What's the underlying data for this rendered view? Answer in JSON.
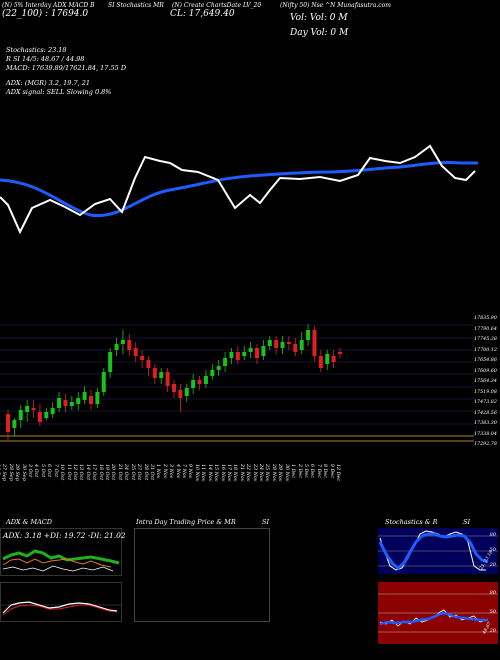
{
  "header": {
    "line1": [
      "(N) 5% Interday ADX MACD B",
      "SI Stochastics MR",
      "(N) Create ChartsDate LV_20",
      "(Nifty 50) Nse ^N Munafasutra.com"
    ],
    "line2": "(22_100) : 17694.0",
    "close_text": "CL: 17,649.40",
    "vol_text": "Vol: Vol: 0  M",
    "dayvol_text": "Day Vol: 0  M"
  },
  "info": {
    "stoch_label": "Stochastics: 23.18",
    "stoch_vals": "R       SI 14/5: 48.67 / 44.98",
    "macd": "MACD: 17639.89/17621.84, 17.55 D",
    "adx": "ADX:                      (MGR) 3.2,  19.7,  21",
    "adx_signal": "ADX  signal: SELL  Slowing 0.8%"
  },
  "price_labels": [
    "17835.90",
    "17790.64",
    "17745.38",
    "17700.12",
    "17654.86",
    "17609.60",
    "17564.34",
    "17519.08",
    "17473.82",
    "17428.56",
    "17383.30",
    "17338.04",
    "17292.78"
  ],
  "dates": [
    "26 Sep",
    "27 Sep",
    "28 Sep",
    "29 Sep",
    "30 Sep",
    "3 Oct",
    "4 Oct",
    "5 Oct",
    "6 Oct",
    "7 Oct",
    "10 Oct",
    "11 Oct",
    "12 Oct",
    "13 Oct",
    "14 Oct",
    "17 Oct",
    "18 Oct",
    "19 Oct",
    "20 Oct",
    "21 Oct",
    "24 Oct",
    "25 Oct",
    "27 Oct",
    "28 Oct",
    "31 Oct",
    "1 Nov",
    "2 Nov",
    "3 Nov",
    "4 Nov",
    "7 Nov",
    "9 Nov",
    "10 Nov",
    "11 Nov",
    "14 Nov",
    "15 Nov",
    "16 Nov",
    "17 Nov",
    "18 Nov",
    "21 Nov",
    "22 Nov",
    "23 Nov",
    "24 Nov",
    "25 Nov",
    "28 Nov",
    "29 Nov",
    "30 Nov",
    "1 Dec",
    "2 Dec",
    "5 Dec",
    "6 Dec",
    "7 Dec",
    "8 Dec",
    "9 Dec",
    "12 Dec"
  ],
  "panels": {
    "adx_title": "ADX  & MACD",
    "adx_values": "ADX: 3.18  +DI: 19.72  -DI: 21.02",
    "intraday_title": "Intra  Day Trading Price  & MR",
    "intraday_title2": "SI",
    "stoch_title": "Stochastics & R",
    "stoch_title2": "SI",
    "stoch_scale": [
      "80",
      "50",
      "20"
    ],
    "stoch_value": "23, 23.18",
    "rsi_scale": [
      "80",
      "50",
      "20"
    ],
    "rsi_value": "48.67"
  },
  "colors": {
    "background": "#000000",
    "ema": "#1f5cff",
    "price_line": "#ffffff",
    "up_candle": "#17c417",
    "down_candle": "#e02020",
    "stoch_bg": "#00005a",
    "rsi_bg": "#8b0000",
    "grid": "#2a2a6a",
    "plus_di": "#1eb01e",
    "minus_di": "#e07a1a"
  }
}
